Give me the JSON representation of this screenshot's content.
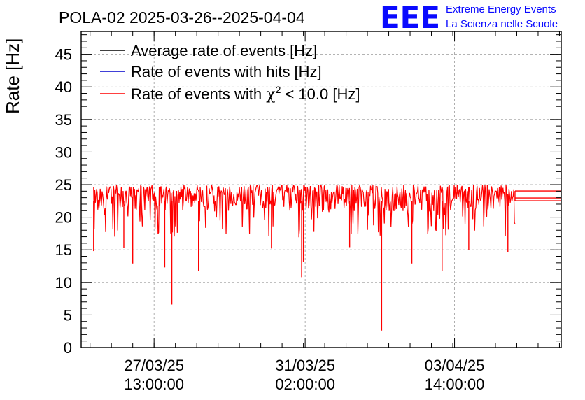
{
  "header": {
    "title": "POLA-02 2025-03-26--2025-04-04",
    "logo_text": "EEE",
    "logo_line1": "Extreme Energy Events",
    "logo_line2": "La Scienza nelle Scuole"
  },
  "colors": {
    "average": "#000000",
    "hits": "#0000cc",
    "chi2": "#ff0000",
    "logo": "#0a0aff",
    "grid": "#9a9a9a"
  },
  "chart_data": {
    "type": "line",
    "title": "POLA-02 2025-03-26--2025-04-04",
    "xlabel": "",
    "ylabel": "Rate [Hz]",
    "ylim": [
      0,
      48.5
    ],
    "xlim": [
      "2025-03-25 20:00",
      "2025-04-06 02:00"
    ],
    "grid": true,
    "legend_position": "top-left",
    "y_ticks": [
      "0",
      "5",
      "10",
      "15",
      "20",
      "25",
      "30",
      "35",
      "40",
      "45"
    ],
    "x_ticks": [
      {
        "x": "2025-03-27 13:00",
        "label_line1": "27/03/25",
        "label_line2": "13:00:00"
      },
      {
        "x": "2025-03-31 02:00",
        "label_line1": "31/03/25",
        "label_line2": "02:00:00"
      },
      {
        "x": "2025-04-03 14:00",
        "label_line1": "03/04/25",
        "label_line2": "14:00:00"
      }
    ],
    "legend": [
      {
        "key": "average",
        "label": "Average rate of events [Hz]"
      },
      {
        "key": "hits",
        "label": "Rate of events with hits [Hz]"
      },
      {
        "key": "chi2",
        "label_prefix": "Rate of events with ",
        "label_symbol": "χ",
        "label_sup": "2",
        "label_suffix": " < 10.0 [Hz]"
      }
    ],
    "series": [
      {
        "name": "Rate of events with χ2 < 10.0 [Hz]",
        "x_start": "2025-03-26 03:00",
        "x_end": "2025-04-05 00:00",
        "baseline": 23.5,
        "noise_upper": 1.5,
        "noise_lower": 2.6,
        "dips": [
          {
            "x": "2025-03-26 03:00",
            "y": 14.8
          },
          {
            "x": "2025-03-26 20:00",
            "y": 15.3
          },
          {
            "x": "2025-03-27 01:00",
            "y": 12.9
          },
          {
            "x": "2025-03-27 23:00",
            "y": 6.6
          },
          {
            "x": "2025-03-27 19:00",
            "y": 12.3
          },
          {
            "x": "2025-03-28 14:00",
            "y": 11.7
          },
          {
            "x": "2025-03-31 00:00",
            "y": 10.8
          },
          {
            "x": "2025-03-30 07:00",
            "y": 15.2
          },
          {
            "x": "2025-03-31 01:00",
            "y": 13.1
          },
          {
            "x": "2025-04-01 21:00",
            "y": 2.6
          },
          {
            "x": "2025-04-01 03:00",
            "y": 15.4
          },
          {
            "x": "2025-04-02 14:00",
            "y": 12.9
          },
          {
            "x": "2025-04-03 07:00",
            "y": 11.7
          },
          {
            "x": "2025-04-03 22:00",
            "y": 15.0
          },
          {
            "x": "2025-04-04 20:00",
            "y": 14.7
          }
        ],
        "tail": [
          {
            "x": "2025-04-05 00:00",
            "y": 23.6
          },
          {
            "x": "2025-04-06 02:00",
            "y": 23.6
          }
        ]
      }
    ]
  }
}
